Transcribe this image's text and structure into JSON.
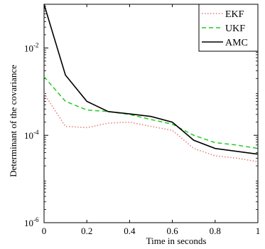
{
  "chart_data": {
    "type": "line",
    "title": "",
    "xlabel": "Time in seconds",
    "ylabel": "Determinant of the covariance",
    "xlim": [
      0,
      1
    ],
    "ylim": [
      1e-06,
      0.1
    ],
    "yscale": "log",
    "grid": false,
    "legend_position": "top-right",
    "x_ticks": [
      {
        "value": 0,
        "label": "0"
      },
      {
        "value": 0.2,
        "label": "0.2"
      },
      {
        "value": 0.4,
        "label": "0.4"
      },
      {
        "value": 0.6,
        "label": "0.6"
      },
      {
        "value": 0.8,
        "label": "0.8"
      },
      {
        "value": 1,
        "label": "1"
      }
    ],
    "y_ticks": [
      {
        "value": 1e-06,
        "base": "10",
        "exp": "-6"
      },
      {
        "value": 0.0001,
        "base": "10",
        "exp": "-4"
      },
      {
        "value": 0.01,
        "base": "10",
        "exp": "-2"
      }
    ],
    "series": [
      {
        "name": "EKF",
        "color": "#e87a7a",
        "style": "dotted",
        "x": [
          0,
          0.1,
          0.2,
          0.3,
          0.4,
          0.5,
          0.6,
          0.7,
          0.8,
          0.9,
          1.0
        ],
        "y": [
          0.0009,
          0.00016,
          0.00015,
          0.00019,
          0.0002,
          0.00016,
          0.00013,
          5e-05,
          3.4e-05,
          3e-05,
          2.5e-05
        ]
      },
      {
        "name": "UKF",
        "color": "#22cc22",
        "style": "dashed",
        "x": [
          0,
          0.1,
          0.2,
          0.3,
          0.4,
          0.5,
          0.6,
          0.7,
          0.8,
          0.9,
          1.0
        ],
        "y": [
          0.0022,
          0.0006,
          0.00038,
          0.00035,
          0.0003,
          0.00023,
          0.00018,
          0.0001,
          6.8e-05,
          6e-05,
          5e-05
        ]
      },
      {
        "name": "AMC",
        "color": "#000000",
        "style": "solid",
        "x": [
          0,
          0.1,
          0.2,
          0.3,
          0.4,
          0.5,
          0.6,
          0.7,
          0.8,
          0.9,
          1.0
        ],
        "y": [
          0.1,
          0.0024,
          0.0006,
          0.00035,
          0.00031,
          0.00027,
          0.0002,
          7.7e-05,
          5e-05,
          4.3e-05,
          3.7e-05
        ]
      }
    ]
  }
}
